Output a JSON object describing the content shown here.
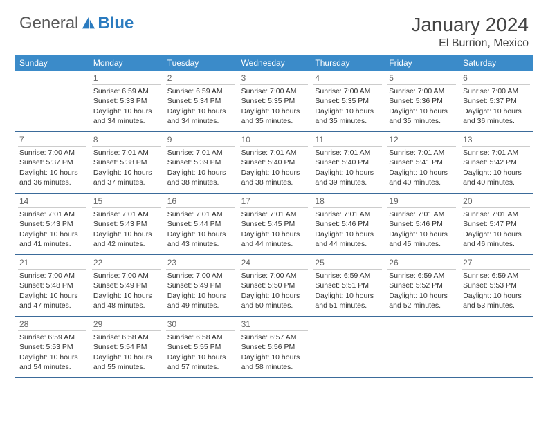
{
  "brand": {
    "part1": "General",
    "part2": "Blue"
  },
  "title": "January 2024",
  "location": "El Burrion, Mexico",
  "colors": {
    "header_bg": "#3b8bc9",
    "header_text": "#ffffff",
    "row_border": "#3b6b9a",
    "daynum_border": "#cccccc",
    "text": "#333333",
    "brand_gray": "#5a5a5a",
    "brand_blue": "#2b7bbf"
  },
  "day_headers": [
    "Sunday",
    "Monday",
    "Tuesday",
    "Wednesday",
    "Thursday",
    "Friday",
    "Saturday"
  ],
  "weeks": [
    [
      {
        "empty": true
      },
      {
        "num": "1",
        "sunrise": "Sunrise: 6:59 AM",
        "sunset": "Sunset: 5:33 PM",
        "day1": "Daylight: 10 hours",
        "day2": "and 34 minutes."
      },
      {
        "num": "2",
        "sunrise": "Sunrise: 6:59 AM",
        "sunset": "Sunset: 5:34 PM",
        "day1": "Daylight: 10 hours",
        "day2": "and 34 minutes."
      },
      {
        "num": "3",
        "sunrise": "Sunrise: 7:00 AM",
        "sunset": "Sunset: 5:35 PM",
        "day1": "Daylight: 10 hours",
        "day2": "and 35 minutes."
      },
      {
        "num": "4",
        "sunrise": "Sunrise: 7:00 AM",
        "sunset": "Sunset: 5:35 PM",
        "day1": "Daylight: 10 hours",
        "day2": "and 35 minutes."
      },
      {
        "num": "5",
        "sunrise": "Sunrise: 7:00 AM",
        "sunset": "Sunset: 5:36 PM",
        "day1": "Daylight: 10 hours",
        "day2": "and 35 minutes."
      },
      {
        "num": "6",
        "sunrise": "Sunrise: 7:00 AM",
        "sunset": "Sunset: 5:37 PM",
        "day1": "Daylight: 10 hours",
        "day2": "and 36 minutes."
      }
    ],
    [
      {
        "num": "7",
        "sunrise": "Sunrise: 7:00 AM",
        "sunset": "Sunset: 5:37 PM",
        "day1": "Daylight: 10 hours",
        "day2": "and 36 minutes."
      },
      {
        "num": "8",
        "sunrise": "Sunrise: 7:01 AM",
        "sunset": "Sunset: 5:38 PM",
        "day1": "Daylight: 10 hours",
        "day2": "and 37 minutes."
      },
      {
        "num": "9",
        "sunrise": "Sunrise: 7:01 AM",
        "sunset": "Sunset: 5:39 PM",
        "day1": "Daylight: 10 hours",
        "day2": "and 38 minutes."
      },
      {
        "num": "10",
        "sunrise": "Sunrise: 7:01 AM",
        "sunset": "Sunset: 5:40 PM",
        "day1": "Daylight: 10 hours",
        "day2": "and 38 minutes."
      },
      {
        "num": "11",
        "sunrise": "Sunrise: 7:01 AM",
        "sunset": "Sunset: 5:40 PM",
        "day1": "Daylight: 10 hours",
        "day2": "and 39 minutes."
      },
      {
        "num": "12",
        "sunrise": "Sunrise: 7:01 AM",
        "sunset": "Sunset: 5:41 PM",
        "day1": "Daylight: 10 hours",
        "day2": "and 40 minutes."
      },
      {
        "num": "13",
        "sunrise": "Sunrise: 7:01 AM",
        "sunset": "Sunset: 5:42 PM",
        "day1": "Daylight: 10 hours",
        "day2": "and 40 minutes."
      }
    ],
    [
      {
        "num": "14",
        "sunrise": "Sunrise: 7:01 AM",
        "sunset": "Sunset: 5:43 PM",
        "day1": "Daylight: 10 hours",
        "day2": "and 41 minutes."
      },
      {
        "num": "15",
        "sunrise": "Sunrise: 7:01 AM",
        "sunset": "Sunset: 5:43 PM",
        "day1": "Daylight: 10 hours",
        "day2": "and 42 minutes."
      },
      {
        "num": "16",
        "sunrise": "Sunrise: 7:01 AM",
        "sunset": "Sunset: 5:44 PM",
        "day1": "Daylight: 10 hours",
        "day2": "and 43 minutes."
      },
      {
        "num": "17",
        "sunrise": "Sunrise: 7:01 AM",
        "sunset": "Sunset: 5:45 PM",
        "day1": "Daylight: 10 hours",
        "day2": "and 44 minutes."
      },
      {
        "num": "18",
        "sunrise": "Sunrise: 7:01 AM",
        "sunset": "Sunset: 5:46 PM",
        "day1": "Daylight: 10 hours",
        "day2": "and 44 minutes."
      },
      {
        "num": "19",
        "sunrise": "Sunrise: 7:01 AM",
        "sunset": "Sunset: 5:46 PM",
        "day1": "Daylight: 10 hours",
        "day2": "and 45 minutes."
      },
      {
        "num": "20",
        "sunrise": "Sunrise: 7:01 AM",
        "sunset": "Sunset: 5:47 PM",
        "day1": "Daylight: 10 hours",
        "day2": "and 46 minutes."
      }
    ],
    [
      {
        "num": "21",
        "sunrise": "Sunrise: 7:00 AM",
        "sunset": "Sunset: 5:48 PM",
        "day1": "Daylight: 10 hours",
        "day2": "and 47 minutes."
      },
      {
        "num": "22",
        "sunrise": "Sunrise: 7:00 AM",
        "sunset": "Sunset: 5:49 PM",
        "day1": "Daylight: 10 hours",
        "day2": "and 48 minutes."
      },
      {
        "num": "23",
        "sunrise": "Sunrise: 7:00 AM",
        "sunset": "Sunset: 5:49 PM",
        "day1": "Daylight: 10 hours",
        "day2": "and 49 minutes."
      },
      {
        "num": "24",
        "sunrise": "Sunrise: 7:00 AM",
        "sunset": "Sunset: 5:50 PM",
        "day1": "Daylight: 10 hours",
        "day2": "and 50 minutes."
      },
      {
        "num": "25",
        "sunrise": "Sunrise: 6:59 AM",
        "sunset": "Sunset: 5:51 PM",
        "day1": "Daylight: 10 hours",
        "day2": "and 51 minutes."
      },
      {
        "num": "26",
        "sunrise": "Sunrise: 6:59 AM",
        "sunset": "Sunset: 5:52 PM",
        "day1": "Daylight: 10 hours",
        "day2": "and 52 minutes."
      },
      {
        "num": "27",
        "sunrise": "Sunrise: 6:59 AM",
        "sunset": "Sunset: 5:53 PM",
        "day1": "Daylight: 10 hours",
        "day2": "and 53 minutes."
      }
    ],
    [
      {
        "num": "28",
        "sunrise": "Sunrise: 6:59 AM",
        "sunset": "Sunset: 5:53 PM",
        "day1": "Daylight: 10 hours",
        "day2": "and 54 minutes."
      },
      {
        "num": "29",
        "sunrise": "Sunrise: 6:58 AM",
        "sunset": "Sunset: 5:54 PM",
        "day1": "Daylight: 10 hours",
        "day2": "and 55 minutes."
      },
      {
        "num": "30",
        "sunrise": "Sunrise: 6:58 AM",
        "sunset": "Sunset: 5:55 PM",
        "day1": "Daylight: 10 hours",
        "day2": "and 57 minutes."
      },
      {
        "num": "31",
        "sunrise": "Sunrise: 6:57 AM",
        "sunset": "Sunset: 5:56 PM",
        "day1": "Daylight: 10 hours",
        "day2": "and 58 minutes."
      },
      {
        "empty": true
      },
      {
        "empty": true
      },
      {
        "empty": true
      }
    ]
  ]
}
